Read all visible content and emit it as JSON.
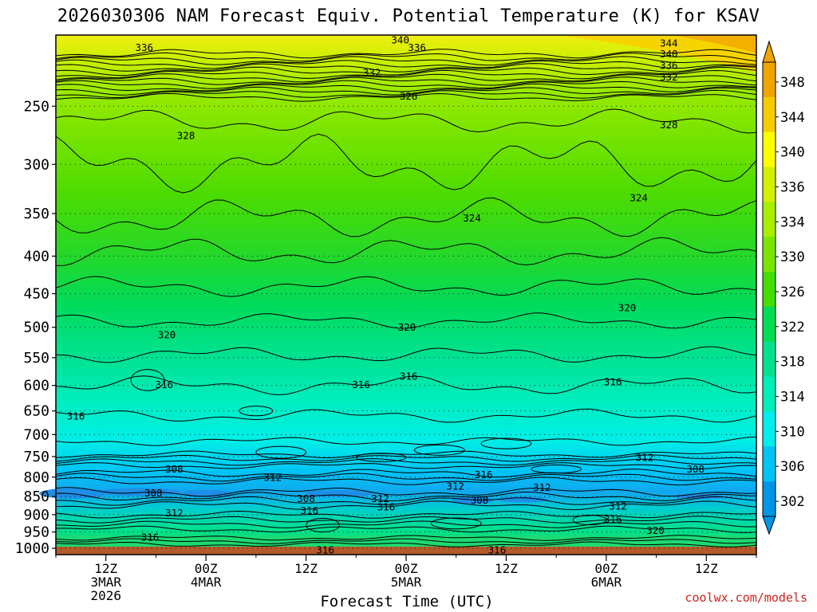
{
  "chart_data": {
    "type": "heatmap",
    "title": "2026030306 NAM Forecast Equiv. Potential Temperature (K) for KSAV",
    "xlabel": "Forecast Time (UTC)",
    "ylabel": "",
    "x_ticks": [
      {
        "lines": [
          "12Z",
          "3MAR",
          "2026"
        ]
      },
      {
        "lines": [
          "00Z",
          "4MAR"
        ]
      },
      {
        "lines": [
          "12Z"
        ]
      },
      {
        "lines": [
          "00Z",
          "5MAR"
        ]
      },
      {
        "lines": [
          "12Z"
        ]
      },
      {
        "lines": [
          "00Z",
          "6MAR"
        ]
      },
      {
        "lines": [
          "12Z"
        ]
      }
    ],
    "x_tick_hours": [
      12,
      24,
      36,
      48,
      60,
      72,
      84
    ],
    "x_range_hours": [
      6,
      90
    ],
    "y_ticks": [
      250,
      300,
      350,
      400,
      450,
      500,
      550,
      600,
      650,
      700,
      750,
      800,
      850,
      900,
      950,
      1000
    ],
    "y_range_hpa": [
      200,
      1020
    ],
    "y_scale": "log-pressure (inverted)",
    "grid": "dotted horizontal lines at pressure ticks",
    "colorbar": {
      "levels": [
        348,
        344,
        340,
        336,
        334,
        330,
        326,
        322,
        318,
        314,
        310,
        306,
        302
      ],
      "colors": [
        "#f0a500",
        "#f6cc00",
        "#ffff00",
        "#d4f000",
        "#a8ee00",
        "#7ae600",
        "#44dd00",
        "#00dd55",
        "#00e28e",
        "#00eeb8",
        "#00eeee",
        "#00c4f5",
        "#0096e6"
      ],
      "extend": "both",
      "units": "K"
    },
    "contour_labels": [
      {
        "h": 16.6,
        "p": 208,
        "v": "336"
      },
      {
        "h": 47.3,
        "p": 203,
        "v": "340"
      },
      {
        "h": 49.3,
        "p": 208,
        "v": "336"
      },
      {
        "h": 79.5,
        "p": 205,
        "v": "344"
      },
      {
        "h": 79.5,
        "p": 212,
        "v": "340"
      },
      {
        "h": 79.5,
        "p": 220,
        "v": "336"
      },
      {
        "h": 79.5,
        "p": 228,
        "v": "332"
      },
      {
        "h": 43.9,
        "p": 225,
        "v": "332"
      },
      {
        "h": 48.3,
        "p": 242,
        "v": "328"
      },
      {
        "h": 21.6,
        "p": 274,
        "v": "328"
      },
      {
        "h": 79.5,
        "p": 265,
        "v": "328"
      },
      {
        "h": 55.9,
        "p": 355,
        "v": "324"
      },
      {
        "h": 75.9,
        "p": 333,
        "v": "324"
      },
      {
        "h": 19.3,
        "p": 512,
        "v": "320"
      },
      {
        "h": 48.1,
        "p": 500,
        "v": "320"
      },
      {
        "h": 74.5,
        "p": 470,
        "v": "320"
      },
      {
        "h": 19.0,
        "p": 598,
        "v": "316"
      },
      {
        "h": 42.6,
        "p": 598,
        "v": "316"
      },
      {
        "h": 48.3,
        "p": 583,
        "v": "316"
      },
      {
        "h": 72.8,
        "p": 593,
        "v": "316"
      },
      {
        "h": 8.4,
        "p": 660,
        "v": "316"
      },
      {
        "h": 20.2,
        "p": 780,
        "v": "308"
      },
      {
        "h": 32.0,
        "p": 800,
        "v": "312"
      },
      {
        "h": 17.7,
        "p": 840,
        "v": "308"
      },
      {
        "h": 20.2,
        "p": 895,
        "v": "312"
      },
      {
        "h": 17.3,
        "p": 965,
        "v": "316"
      },
      {
        "h": 36.0,
        "p": 855,
        "v": "308"
      },
      {
        "h": 44.9,
        "p": 855,
        "v": "312"
      },
      {
        "h": 36.4,
        "p": 888,
        "v": "316"
      },
      {
        "h": 45.6,
        "p": 878,
        "v": "316"
      },
      {
        "h": 53.9,
        "p": 823,
        "v": "312"
      },
      {
        "h": 57.3,
        "p": 793,
        "v": "316"
      },
      {
        "h": 56.8,
        "p": 860,
        "v": "308"
      },
      {
        "h": 64.3,
        "p": 826,
        "v": "312"
      },
      {
        "h": 73.4,
        "p": 876,
        "v": "312"
      },
      {
        "h": 72.8,
        "p": 913,
        "v": "316"
      },
      {
        "h": 76.6,
        "p": 752,
        "v": "312"
      },
      {
        "h": 82.7,
        "p": 780,
        "v": "308"
      },
      {
        "h": 77.9,
        "p": 945,
        "v": "320"
      },
      {
        "h": 38.3,
        "p": 1005,
        "v": "316"
      },
      {
        "h": 58.9,
        "p": 1005,
        "v": "316"
      }
    ]
  },
  "credit": "coolwx.com/models"
}
